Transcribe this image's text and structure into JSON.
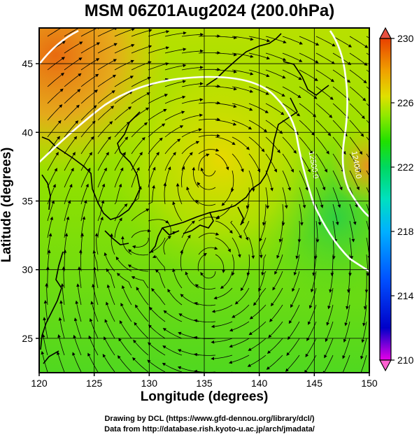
{
  "title": "MSM 06Z01Aug2024 (200.0hPa)",
  "axes": {
    "xlabel": "Longitude (degrees)",
    "ylabel": "Latitude  (degrees)",
    "xlim": [
      120,
      150
    ],
    "ylim": [
      22.5,
      47.6
    ],
    "xticks": [
      120,
      125,
      130,
      135,
      140,
      145,
      150
    ],
    "yticks": [
      25,
      30,
      35,
      40,
      45
    ]
  },
  "colorbar": {
    "min": 210,
    "max": 230,
    "ticks": [
      230,
      226,
      222,
      218,
      214,
      210
    ],
    "colors": [
      "#e800e8",
      "#0000c8",
      "#0050ff",
      "#00b0ff",
      "#00e0c0",
      "#00d860",
      "#20e000",
      "#90e800",
      "#e0e000",
      "#f0a000",
      "#e84000"
    ]
  },
  "contours": [
    {
      "label": "12500.0",
      "lon": 144.5,
      "lat": 38.6
    },
    {
      "label": "12400.0",
      "lon": 148.4,
      "lat": 38.6
    }
  ],
  "credits": {
    "line1": "Drawing by DCL (https://www.gfd-dennou.org/library/dcl/)",
    "line2": "Data from http://database.rish.kyoto-u.ac.jp/arch/jmadata/"
  }
}
